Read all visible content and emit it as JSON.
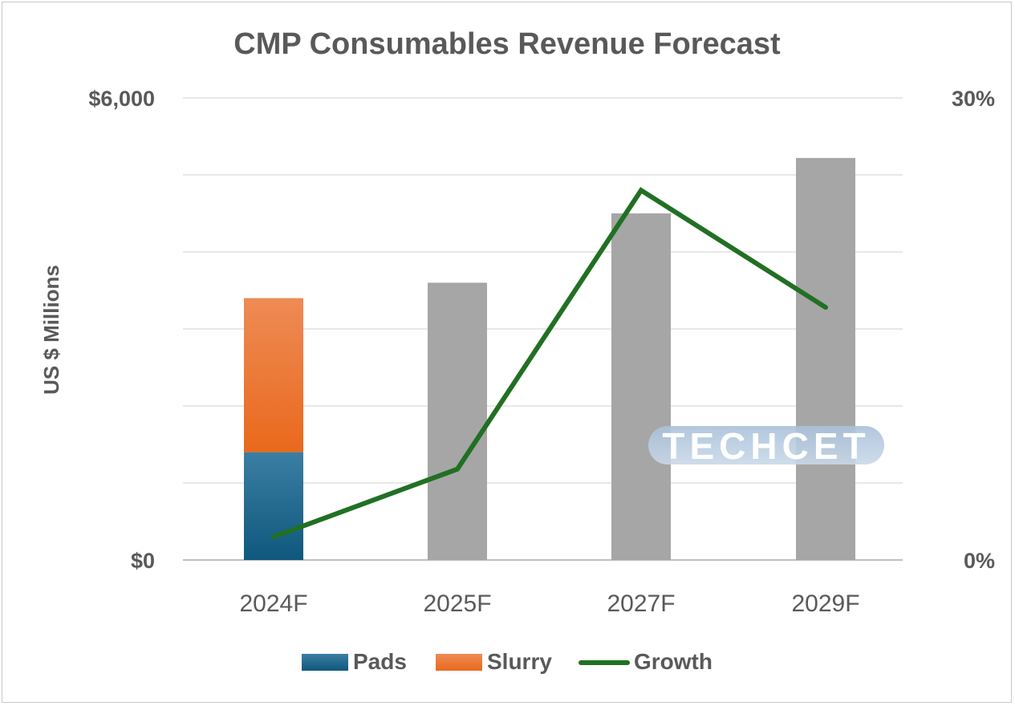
{
  "chart_data": {
    "type": "bar",
    "title": "CMP Consumables Revenue Forecast",
    "ylabel": "US $ Millions",
    "y_ticks_left": [
      "$6,000",
      "$0"
    ],
    "y_ticks_right": [
      "30%",
      "0%"
    ],
    "ylim": [
      0,
      6000
    ],
    "y2lim": [
      0,
      30
    ],
    "categories": [
      "2024F",
      "2025F",
      "2027F",
      "2029F"
    ],
    "series": [
      {
        "name": "Pads",
        "kind": "bar",
        "stack": "revenue",
        "values": [
          1400,
          null,
          null,
          null
        ],
        "color": "#1f5f82"
      },
      {
        "name": "Slurry",
        "kind": "bar",
        "stack": "revenue",
        "values": [
          2000,
          null,
          null,
          null
        ],
        "color": "#ec6b20"
      },
      {
        "kind": "bar",
        "stack": "revenue",
        "values": [
          null,
          3600,
          4500,
          5220
        ],
        "color": "#a6a6a6"
      },
      {
        "name": "Growth",
        "kind": "line",
        "axis": "right",
        "values": [
          1.5,
          5.9,
          24.0,
          16.4
        ],
        "color": "#217023"
      }
    ],
    "legend_position": "bottom",
    "grid": true,
    "watermark": "TECHCET"
  }
}
